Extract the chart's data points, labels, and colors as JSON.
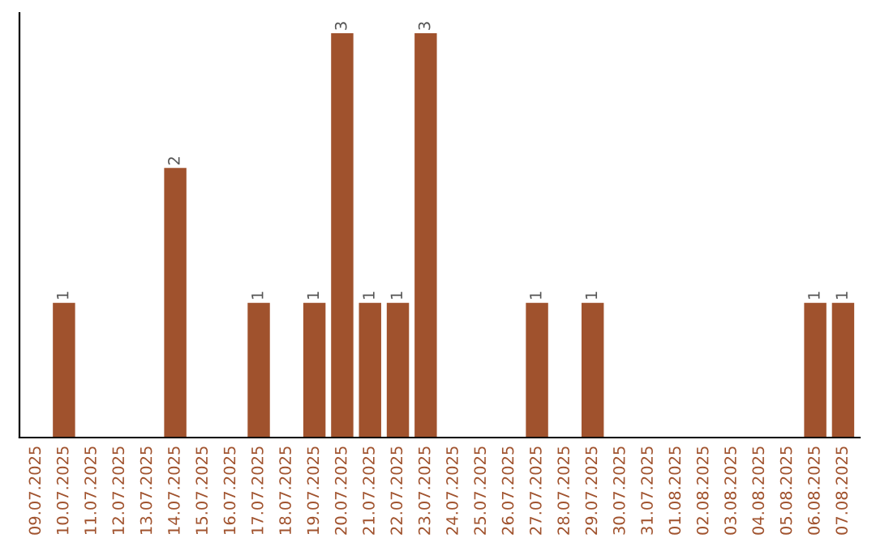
{
  "chart_data": {
    "type": "bar",
    "categories": [
      "09.07.2025",
      "10.07.2025",
      "11.07.2025",
      "12.07.2025",
      "13.07.2025",
      "14.07.2025",
      "15.07.2025",
      "16.07.2025",
      "17.07.2025",
      "18.07.2025",
      "19.07.2025",
      "20.07.2025",
      "21.07.2025",
      "22.07.2025",
      "23.07.2025",
      "24.07.2025",
      "25.07.2025",
      "26.07.2025",
      "27.07.2025",
      "28.07.2025",
      "29.07.2025",
      "30.07.2025",
      "31.07.2025",
      "01.08.2025",
      "02.08.2025",
      "03.08.2025",
      "04.08.2025",
      "05.08.2025",
      "06.08.2025",
      "07.08.2025"
    ],
    "values": [
      0,
      1,
      0,
      0,
      0,
      2,
      0,
      0,
      1,
      0,
      1,
      3,
      1,
      1,
      3,
      0,
      0,
      0,
      1,
      0,
      1,
      0,
      0,
      0,
      0,
      0,
      0,
      0,
      1,
      1
    ],
    "value_labels": [
      null,
      "1",
      null,
      null,
      null,
      "2",
      null,
      null,
      "1",
      null,
      "1",
      "3",
      "1",
      "1",
      "3",
      null,
      null,
      null,
      "1",
      null,
      "1",
      null,
      null,
      null,
      null,
      null,
      null,
      null,
      "1",
      "1"
    ],
    "color": "#a0522d",
    "tick_labels": "x",
    "grid": false,
    "legend": false
  }
}
